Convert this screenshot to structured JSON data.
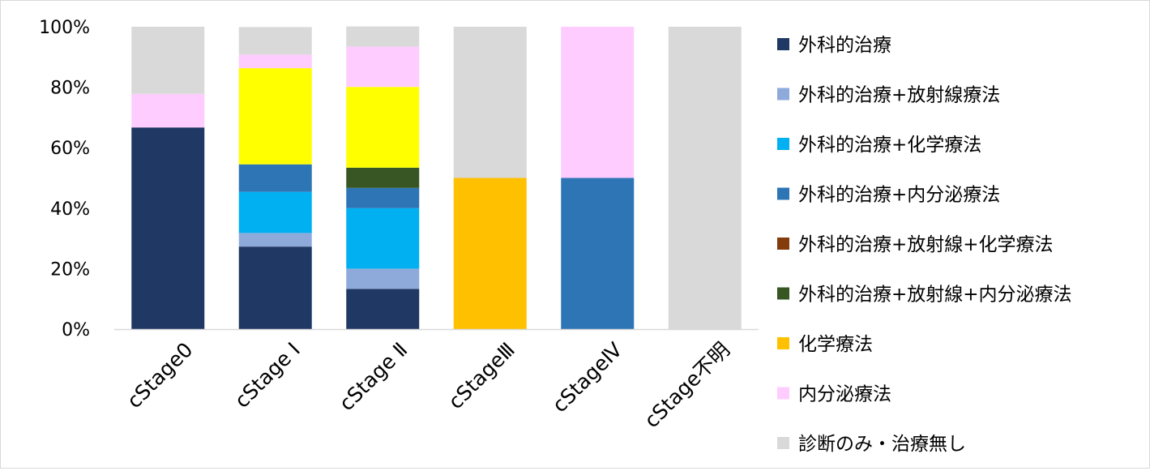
{
  "chart_data": {
    "type": "bar",
    "stacked": true,
    "percent_stacked": true,
    "title": "",
    "xlabel": "",
    "ylabel": "",
    "ylim": [
      0,
      100
    ],
    "y_ticks": [
      "0%",
      "20%",
      "40%",
      "60%",
      "80%",
      "100%"
    ],
    "grid": false,
    "legend_position": "right",
    "categories": [
      "cStage0",
      "cStage Ⅰ",
      "cStage Ⅱ",
      "cStageⅢ",
      "cStageⅣ",
      "cStage不明"
    ],
    "series": [
      {
        "name": "外科的治療",
        "color": "#1f3864",
        "values": [
          66.7,
          27.3,
          13.3,
          0,
          0,
          0
        ]
      },
      {
        "name": "外科的治療+放射線療法",
        "color": "#8eaadb",
        "values": [
          0,
          4.5,
          6.7,
          0,
          0,
          0
        ]
      },
      {
        "name": "外科的治療+化学療法",
        "color": "#00b0f0",
        "values": [
          0,
          13.6,
          20.0,
          0,
          0,
          0
        ]
      },
      {
        "name": "外科的治療+内分泌療法",
        "color": "#2e75b6",
        "values": [
          0,
          9.1,
          6.7,
          0,
          50.0,
          0
        ]
      },
      {
        "name": "外科的治療+放射線+化学療法",
        "color": "#843c0c",
        "values": [
          0,
          0,
          0,
          0,
          0,
          0
        ]
      },
      {
        "name": "外科的治療+放射線+内分泌療法",
        "color": "#375623",
        "values": [
          0,
          0,
          6.7,
          0,
          0,
          0
        ]
      },
      {
        "name": "化学療法",
        "color": "#ffc000",
        "values": [
          0,
          0,
          0,
          50.0,
          0,
          0
        ]
      },
      {
        "name": "",
        "color": "#ffff00",
        "values": [
          0,
          31.8,
          26.7,
          0,
          0,
          0
        ]
      },
      {
        "name": "内分泌療法",
        "color": "#ffccff",
        "values": [
          11.1,
          4.5,
          13.3,
          0,
          50.0,
          0
        ]
      },
      {
        "name": "診断のみ・治療無し",
        "color": "#d9d9d9",
        "values": [
          22.2,
          9.1,
          6.7,
          50.0,
          0,
          100.0
        ]
      }
    ]
  }
}
